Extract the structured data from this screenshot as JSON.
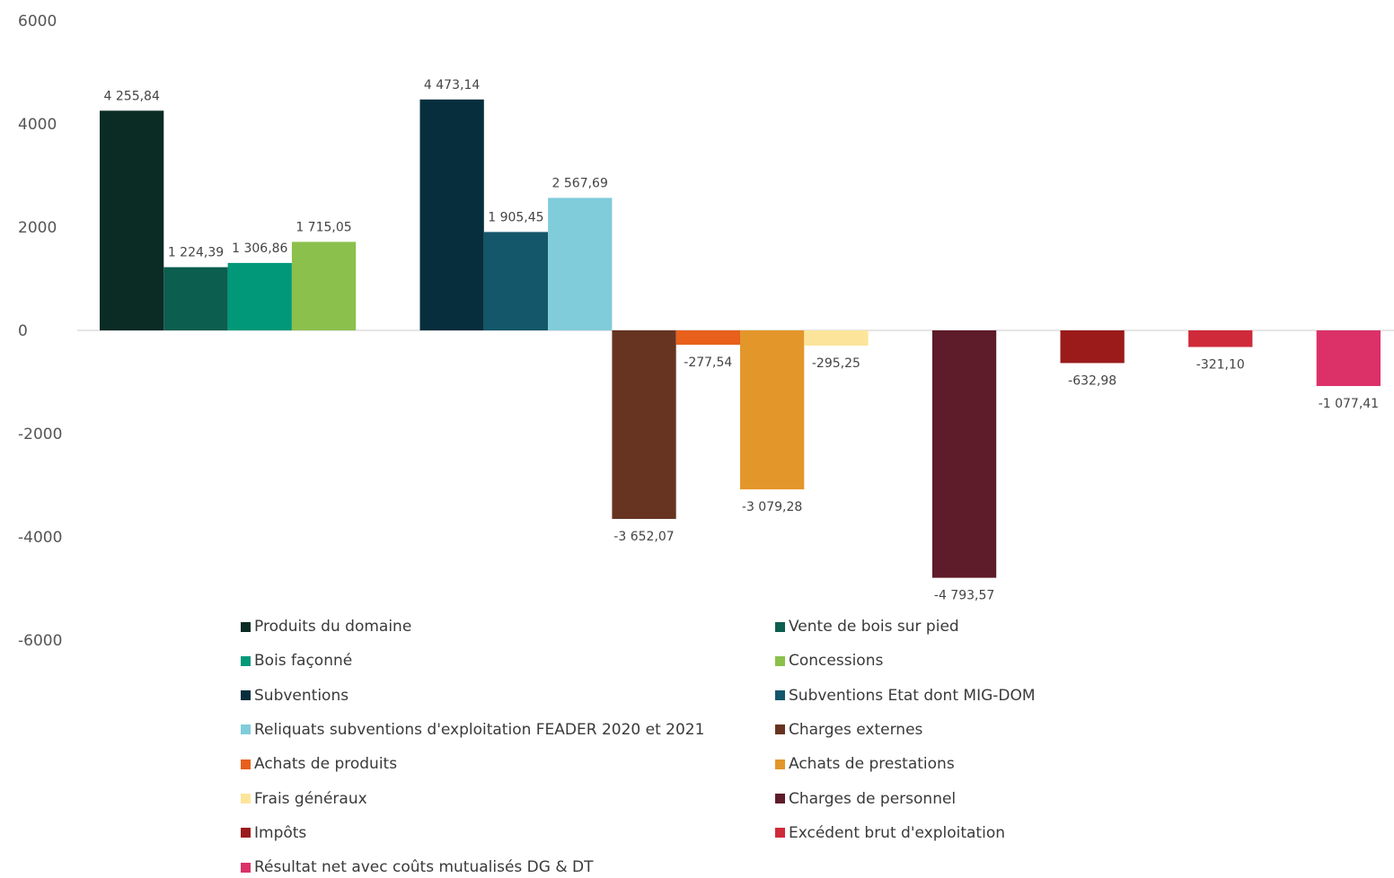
{
  "chart_data": {
    "type": "bar",
    "title": "",
    "xlabel": "",
    "ylabel": "",
    "ylim": [
      -6000,
      6000
    ],
    "y_ticks": [
      6000,
      4000,
      2000,
      0,
      -2000,
      -4000,
      -6000
    ],
    "y_tick_labels": [
      "6000",
      "4000",
      "2000",
      "0",
      "-2000",
      "-4000",
      "-6000"
    ],
    "grid": false,
    "legend_position": "bottom",
    "bars": [
      {
        "name": "Produits du domaine",
        "value": 4255.84,
        "label": "4 255,84",
        "color": "#0b2b25"
      },
      {
        "name": "Vente de bois sur pied",
        "value": 1224.39,
        "label": "1 224,39",
        "color": "#0c5e4f"
      },
      {
        "name": "Bois façonné",
        "value": 1306.86,
        "label": "1 306,86",
        "color": "#009879"
      },
      {
        "name": "Concessions",
        "value": 1715.05,
        "label": "1 715,05",
        "color": "#8bc04c"
      },
      {
        "name": "Subventions",
        "value": 4473.14,
        "label": "4 473,14",
        "color": "#062e3c"
      },
      {
        "name": "Subventions Etat dont MIG-DOM",
        "value": 1905.45,
        "label": "1 905,45",
        "color": "#14566a"
      },
      {
        "name": "Reliquats subventions d'exploitation FEADER 2020 et 2021",
        "value": 2567.69,
        "label": "2 567,69",
        "color": "#80ccdb"
      },
      {
        "name": "Charges externes",
        "value": -3652.07,
        "label": "-3 652,07",
        "color": "#663421"
      },
      {
        "name": "Achats de produits",
        "value": -277.54,
        "label": "-277,54",
        "color": "#e8601c"
      },
      {
        "name": "Achats de prestations",
        "value": -3079.28,
        "label": "-3 079,28",
        "color": "#e3962a"
      },
      {
        "name": "Frais généraux",
        "value": -295.25,
        "label": "-295,25",
        "color": "#fce59b"
      },
      {
        "name": "Charges de personnel",
        "value": -4793.57,
        "label": "-4 793,57",
        "color": "#5e1b29"
      },
      {
        "name": "Impôts",
        "value": -632.98,
        "label": "-632,98",
        "color": "#9b1b1b"
      },
      {
        "name": "Excédent brut d'exploitation",
        "value": -321.1,
        "label": "-321,10",
        "color": "#cf2a3a"
      },
      {
        "name": "Résultat net avec coûts mutualisés DG & DT",
        "value": -1077.41,
        "label": "-1 077,41",
        "color": "#db3168"
      }
    ],
    "bar_slots": [
      0,
      1,
      2,
      3,
      5,
      6,
      7,
      8,
      9,
      10,
      11,
      13,
      15,
      17,
      19
    ]
  }
}
